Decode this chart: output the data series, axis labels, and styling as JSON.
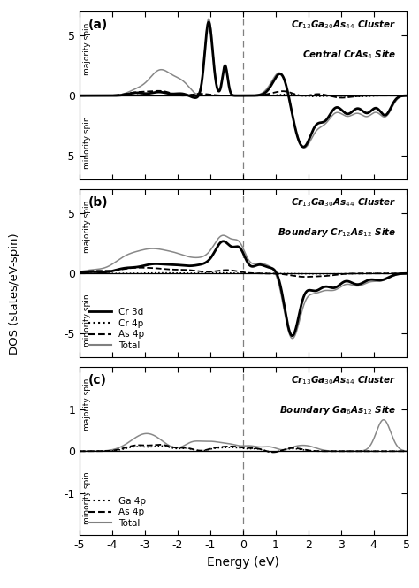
{
  "xlim": [
    -5,
    5
  ],
  "ylim_a": [
    -7,
    7
  ],
  "ylim_b": [
    -7,
    7
  ],
  "ylim_c": [
    -2,
    2
  ],
  "yticks_a": [
    -5,
    0,
    5
  ],
  "yticks_b": [
    -5,
    0,
    5
  ],
  "yticks_c": [
    -1,
    0,
    1
  ],
  "xticks": [
    -5,
    -4,
    -3,
    -2,
    -1,
    0,
    1,
    2,
    3,
    4,
    5
  ],
  "xlabel": "Energy (eV)",
  "ylabel": "DOS (states/eV-spin)",
  "panel_labels": [
    "(a)",
    "(b)",
    "(c)"
  ],
  "titles_a_line1": "Cr$_{13}$Ga$_{30}$As$_{44}$ Cluster",
  "titles_a_line2": "Central CrAs$_4$ Site",
  "titles_b_line1": "Cr$_{13}$Ga$_{30}$As$_{44}$ Cluster",
  "titles_b_line2": "Boundary Cr$_{12}$As$_{12}$ Site",
  "titles_c_line1": "Cr$_{13}$Ga$_{30}$As$_{44}$ Cluster",
  "titles_c_line2": "Boundary Ga$_6$As$_{12}$ Site",
  "yaxis_label_top": "majority spin",
  "yaxis_label_bottom": "minority spin",
  "vline_x": 0,
  "legend_b": [
    {
      "label": "Cr 3d",
      "linestyle": "-",
      "color": "black",
      "linewidth": 2.0
    },
    {
      "label": "Cr 4p",
      "linestyle": ":",
      "color": "black",
      "linewidth": 1.5
    },
    {
      "label": "As 4p",
      "linestyle": "--",
      "color": "black",
      "linewidth": 1.5
    },
    {
      "label": "Total",
      "linestyle": "-",
      "color": "gray",
      "linewidth": 1.5
    }
  ],
  "legend_c": [
    {
      "label": "Ga 4p",
      "linestyle": ":",
      "color": "black",
      "linewidth": 1.5
    },
    {
      "label": "As 4p",
      "linestyle": "--",
      "color": "black",
      "linewidth": 1.5
    },
    {
      "label": "Total",
      "linestyle": "-",
      "color": "gray",
      "linewidth": 1.5
    }
  ]
}
